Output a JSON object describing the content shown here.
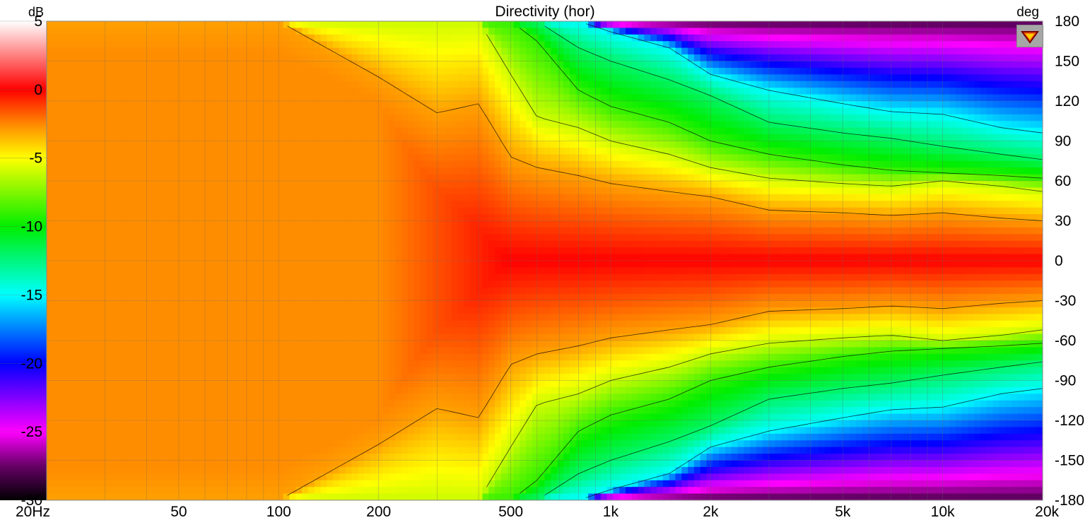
{
  "chart_data": {
    "type": "heatmap",
    "title": "Directivity (hor)",
    "colorbar_unit": "dB",
    "y_unit": "deg",
    "x_axis": {
      "scale": "log",
      "range_hz": [
        20,
        20000
      ],
      "tick_values": [
        20,
        50,
        100,
        200,
        500,
        1000,
        2000,
        5000,
        10000,
        20000
      ],
      "tick_labels": [
        "20Hz",
        "50",
        "100",
        "200",
        "500",
        "1k",
        "2k",
        "5k",
        "10k",
        "20k"
      ]
    },
    "y_axis": {
      "range_deg": [
        -180,
        180
      ],
      "tick_values": [
        180,
        150,
        120,
        90,
        60,
        30,
        0,
        -30,
        -60,
        -90,
        -120,
        -150,
        -180
      ],
      "tick_labels": [
        "180",
        "150",
        "120",
        "90",
        "60",
        "30",
        "0",
        "-30",
        "-60",
        "-90",
        "-120",
        "-150",
        "-180"
      ]
    },
    "colorbar": {
      "range_db": [
        -30,
        5
      ],
      "tick_values": [
        5,
        0,
        -5,
        -10,
        -15,
        -20,
        -25,
        -30
      ],
      "tick_labels": [
        "5",
        "0",
        "-5",
        "-10",
        "-15",
        "-20",
        "-25",
        "-30"
      ],
      "color_stops": [
        {
          "db": 5,
          "color": "#ffffff"
        },
        {
          "db": 0,
          "color": "#ff0000"
        },
        {
          "db": -2.5,
          "color": "#ff8800"
        },
        {
          "db": -5,
          "color": "#ffff00"
        },
        {
          "db": -10,
          "color": "#00ee00"
        },
        {
          "db": -15,
          "color": "#00ffff"
        },
        {
          "db": -20,
          "color": "#0000ff"
        },
        {
          "db": -25,
          "color": "#ff00ff"
        },
        {
          "db": -27.5,
          "color": "#660066"
        },
        {
          "db": -30,
          "color": "#000000"
        }
      ]
    },
    "grid": true,
    "contour_levels_db": [
      -3,
      -6,
      -9,
      -12,
      -15
    ],
    "contour_color": "#000000",
    "approx_data": {
      "note_freq_hz": [
        20,
        50,
        100,
        200,
        300,
        400,
        500,
        600,
        800,
        1000,
        1500,
        2000,
        3000,
        5000,
        7000,
        10000,
        15000,
        20000
      ],
      "angle_deg_at_minus3db": [
        180,
        180,
        180,
        138,
        111,
        118,
        78,
        70,
        64,
        58,
        52,
        48,
        38,
        36,
        34,
        36,
        32,
        30
      ],
      "angle_deg_at_minus6db": [
        180,
        180,
        180,
        180,
        180,
        180,
        140,
        108,
        100,
        90,
        80,
        70,
        62,
        58,
        56,
        60,
        56,
        52
      ],
      "angle_deg_at_minus9db": [
        180,
        180,
        180,
        180,
        180,
        180,
        180,
        165,
        128,
        116,
        104,
        90,
        80,
        72,
        68,
        66,
        64,
        62
      ],
      "angle_deg_at_minus12db": [
        180,
        180,
        180,
        180,
        180,
        180,
        180,
        180,
        160,
        150,
        136,
        124,
        104,
        96,
        92,
        86,
        80,
        76
      ],
      "angle_deg_at_minus15db": [
        180,
        180,
        180,
        180,
        180,
        180,
        180,
        180,
        180,
        172,
        160,
        140,
        128,
        118,
        112,
        110,
        100,
        96
      ]
    }
  }
}
